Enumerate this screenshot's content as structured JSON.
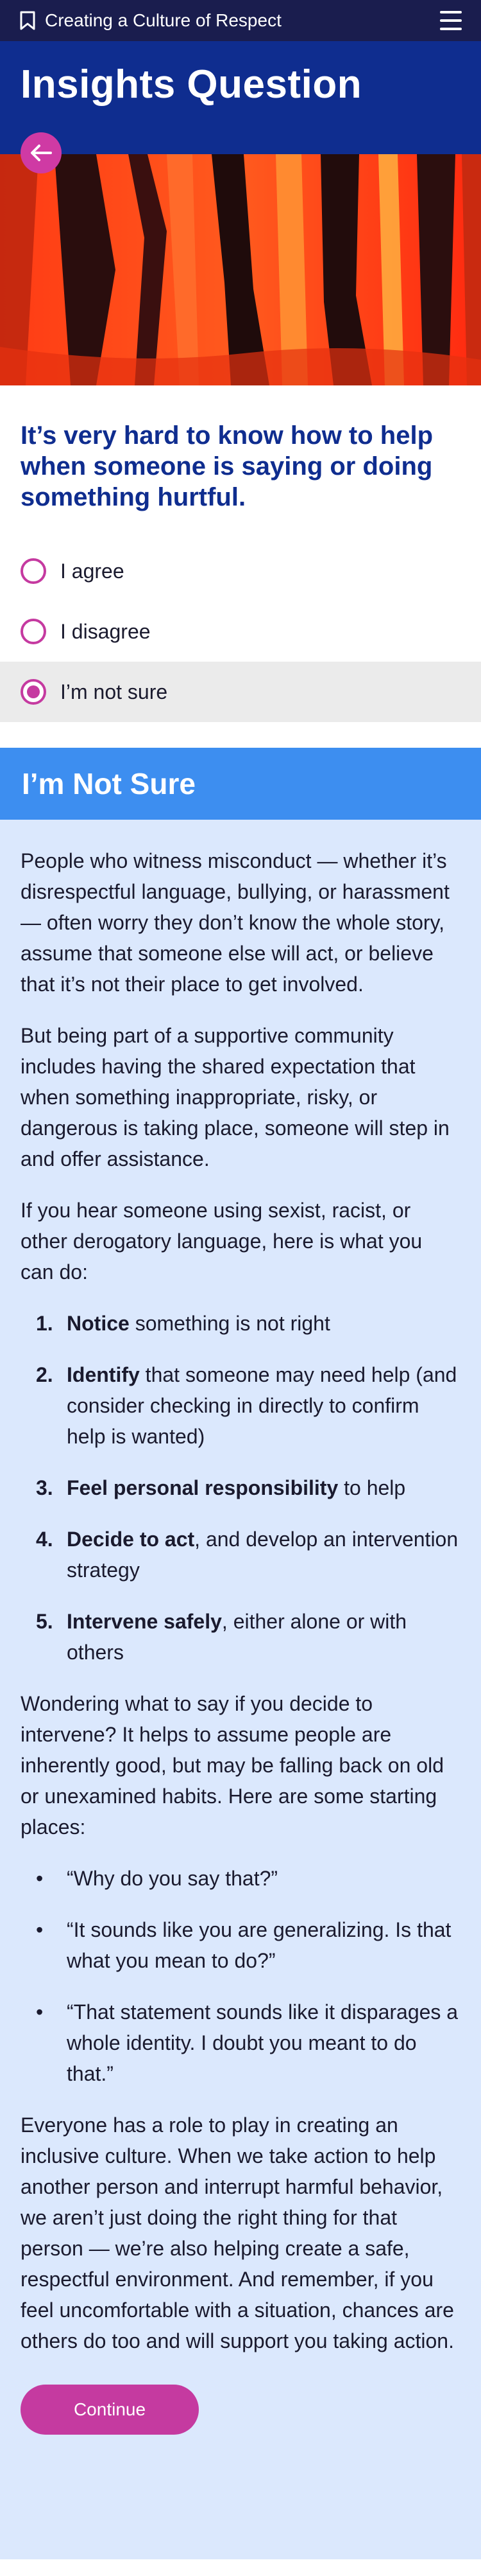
{
  "topbar": {
    "title": "Creating a Culture of Respect",
    "bookmark_icon": "bookmark-icon",
    "menu_icon": "hamburger-menu-icon"
  },
  "header": {
    "title": "Insights Question",
    "back_icon": "arrow-left-icon"
  },
  "question": {
    "text": "It’s very hard to know how to help when someone is saying or doing something hurtful.",
    "options": [
      {
        "label": "I agree",
        "selected": false
      },
      {
        "label": "I disagree",
        "selected": false
      },
      {
        "label": "I’m not sure",
        "selected": true
      }
    ]
  },
  "answer": {
    "title": "I’m Not Sure",
    "p1": "People who witness misconduct — whether it’s disrespectful language, bullying, or harassment — often worry they don’t know the whole story, assume that someone else will act, or believe that it’s not their place to get involved.",
    "p2": "But being part of a supportive community includes having the shared expectation that when something inappropriate, risky, or dangerous is taking place, someone will step in and offer assistance.",
    "p3": "If you hear someone using sexist, racist, or other derogatory language, here is what you can do:",
    "steps": [
      {
        "num": "1.",
        "bold": "Notice",
        "rest": " something is not right"
      },
      {
        "num": "2.",
        "bold": "Identify",
        "rest": " that someone may need help (and consider checking in directly to confirm help is wanted)"
      },
      {
        "num": "3.",
        "bold": "Feel personal responsibility",
        "rest": " to help"
      },
      {
        "num": "4.",
        "bold": "Decide to act",
        "rest": ", and develop an intervention strategy"
      },
      {
        "num": "5.",
        "bold": "Intervene safely",
        "rest": ", either alone or with others"
      }
    ],
    "p4": "Wondering what to say if you decide to intervene? It helps to assume people are inherently good, but may be falling back on old or unexamined habits. Here are some starting places:",
    "quotes": [
      "“Why do you say that?”",
      "“It sounds like you are generalizing. Is that what you mean to do?”",
      "“That statement sounds like it disparages a whole identity. I doubt you meant to do that.”"
    ],
    "bullet": "•",
    "p5": "Everyone has a role to play in creating an inclusive culture. When we take action to help another person and interrupt harmful behavior, we aren’t just doing the right thing for that person — we’re also helping create a safe, respectful environment. And remember, if you feel uncomfortable with a situation, chances are others do too and will support you taking action.",
    "continue_label": "Continue"
  },
  "colors": {
    "topbar": "#1a1d4e",
    "header": "#0f2d8f",
    "accent": "#c53aa0",
    "banner": "#3d8ef0",
    "answer_bg": "#dbe8fd"
  }
}
